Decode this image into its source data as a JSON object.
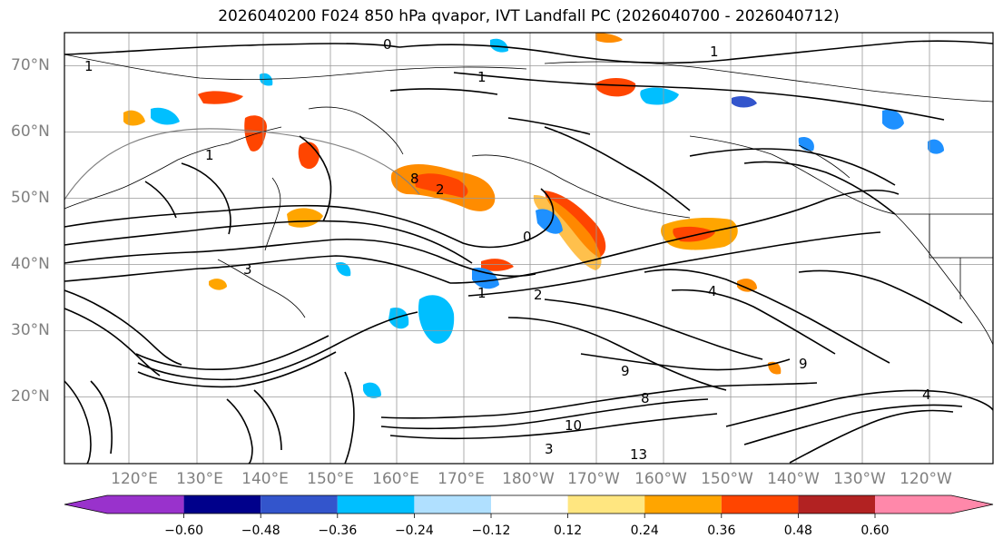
{
  "title": "2026040200 F024 850 hPa qvapor, IVT Landfall PC (2026040700 - 2026040712)",
  "map": {
    "lat_labels": [
      "70°N",
      "60°N",
      "50°N",
      "40°N",
      "30°N",
      "20°N"
    ],
    "lon_labels": [
      "120°E",
      "130°E",
      "140°E",
      "150°E",
      "160°E",
      "170°E",
      "180°W",
      "170°W",
      "160°W",
      "150°W",
      "140°W",
      "130°W",
      "120°W"
    ],
    "lat_range": [
      10,
      75
    ],
    "colors": {
      "positive": "#ff8c00",
      "negative": "#1e90ff",
      "contour": "#000000",
      "grid": "#999999"
    },
    "contour_labels": [
      "0",
      "1",
      "1",
      "1",
      "1",
      "2",
      "3",
      "4",
      "4",
      "8",
      "9",
      "9",
      "10",
      "13",
      "8",
      "0",
      "1",
      "3",
      "2"
    ]
  },
  "colorbar": {
    "colors": [
      "#9932cc",
      "#00008b",
      "#3355cc",
      "#00bfff",
      "#b0e0ff",
      "#ffffff",
      "#ffe680",
      "#ffa500",
      "#ff4500",
      "#b22222",
      "#ff88aa"
    ],
    "tick_labels": [
      "−0.60",
      "−0.48",
      "−0.36",
      "−0.24",
      "−0.12",
      "0.12",
      "0.24",
      "0.36",
      "0.48",
      "0.60"
    ]
  }
}
